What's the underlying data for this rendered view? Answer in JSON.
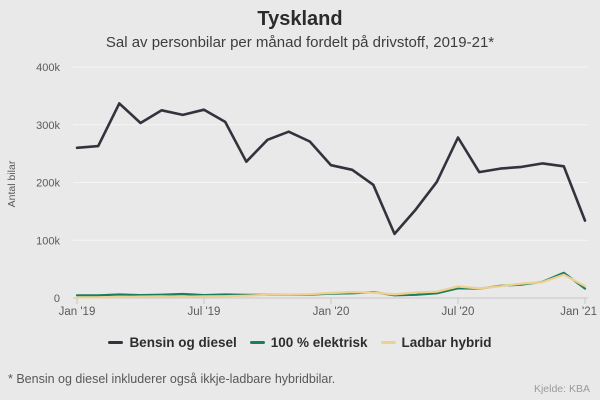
{
  "header": {
    "title": "Tyskland",
    "subtitle": "Sal av personbilar per månad fordelt på drivstoff, 2019-21*"
  },
  "footer": {
    "footnote": "* Bensin og diesel inkluderer også ikkje-ladbare hybridbilar.",
    "source": "Kjelde: KBA"
  },
  "colors": {
    "background": "#e9e9e9",
    "gridline": "#f5f5f5",
    "axis": "#c8c8c8",
    "tick_text": "#5b5b5b"
  },
  "chart_data": {
    "type": "line",
    "title": "Tyskland",
    "subtitle": "Sal av personbilar per månad fordelt på drivstoff, 2019-21*",
    "xlabel": "",
    "ylabel": "Antal bilar",
    "ylim": [
      0,
      400000
    ],
    "grid": true,
    "legend_position": "bottom",
    "x": [
      "Jan 2019",
      "Feb 2019",
      "Mar 2019",
      "Apr 2019",
      "Mai 2019",
      "Jun 2019",
      "Jul 2019",
      "Aug 2019",
      "Sep 2019",
      "Okt 2019",
      "Nov 2019",
      "Des 2019",
      "Jan 2020",
      "Feb 2020",
      "Mar 2020",
      "Apr 2020",
      "Mai 2020",
      "Jun 2020",
      "Jul 2020",
      "Aug 2020",
      "Sep 2020",
      "Okt 2020",
      "Nov 2020",
      "Des 2020",
      "Jan 2021"
    ],
    "x_tick_indices": [
      0,
      6,
      12,
      18,
      24
    ],
    "x_tick_labels": [
      "Jan '19",
      "Jul '19",
      "Jan '20",
      "Jul '20",
      "Jan '21"
    ],
    "y_tick_values": [
      0,
      100000,
      200000,
      300000,
      400000
    ],
    "y_tick_labels": [
      "0",
      "100k",
      "200k",
      "300k",
      "400k"
    ],
    "series": [
      {
        "name": "Bensin og diesel",
        "color": "#33333d",
        "values": [
          260000,
          263000,
          337000,
          303000,
          325000,
          317000,
          326000,
          305000,
          236000,
          274000,
          288000,
          271000,
          230000,
          222000,
          196000,
          111000,
          153000,
          201000,
          278000,
          218000,
          224000,
          227000,
          233000,
          228000,
          134000
        ]
      },
      {
        "name": "100 % elektrisk",
        "color": "#1b7d62",
        "values": [
          4600,
          4600,
          6000,
          5000,
          5700,
          6900,
          5100,
          6100,
          5600,
          5300,
          5600,
          5700,
          7500,
          8200,
          10300,
          4600,
          5600,
          8100,
          16800,
          16100,
          21200,
          23200,
          28000,
          43700,
          16300
        ]
      },
      {
        "name": "Ladbar hybrid",
        "color": "#eed08f",
        "values": [
          1100,
          1200,
          1900,
          2500,
          2700,
          2200,
          2800,
          3100,
          3900,
          5500,
          5900,
          6600,
          8600,
          10300,
          9300,
          6200,
          9600,
          10900,
          19900,
          16600,
          20300,
          24900,
          27600,
          40400,
          20600
        ]
      }
    ]
  }
}
